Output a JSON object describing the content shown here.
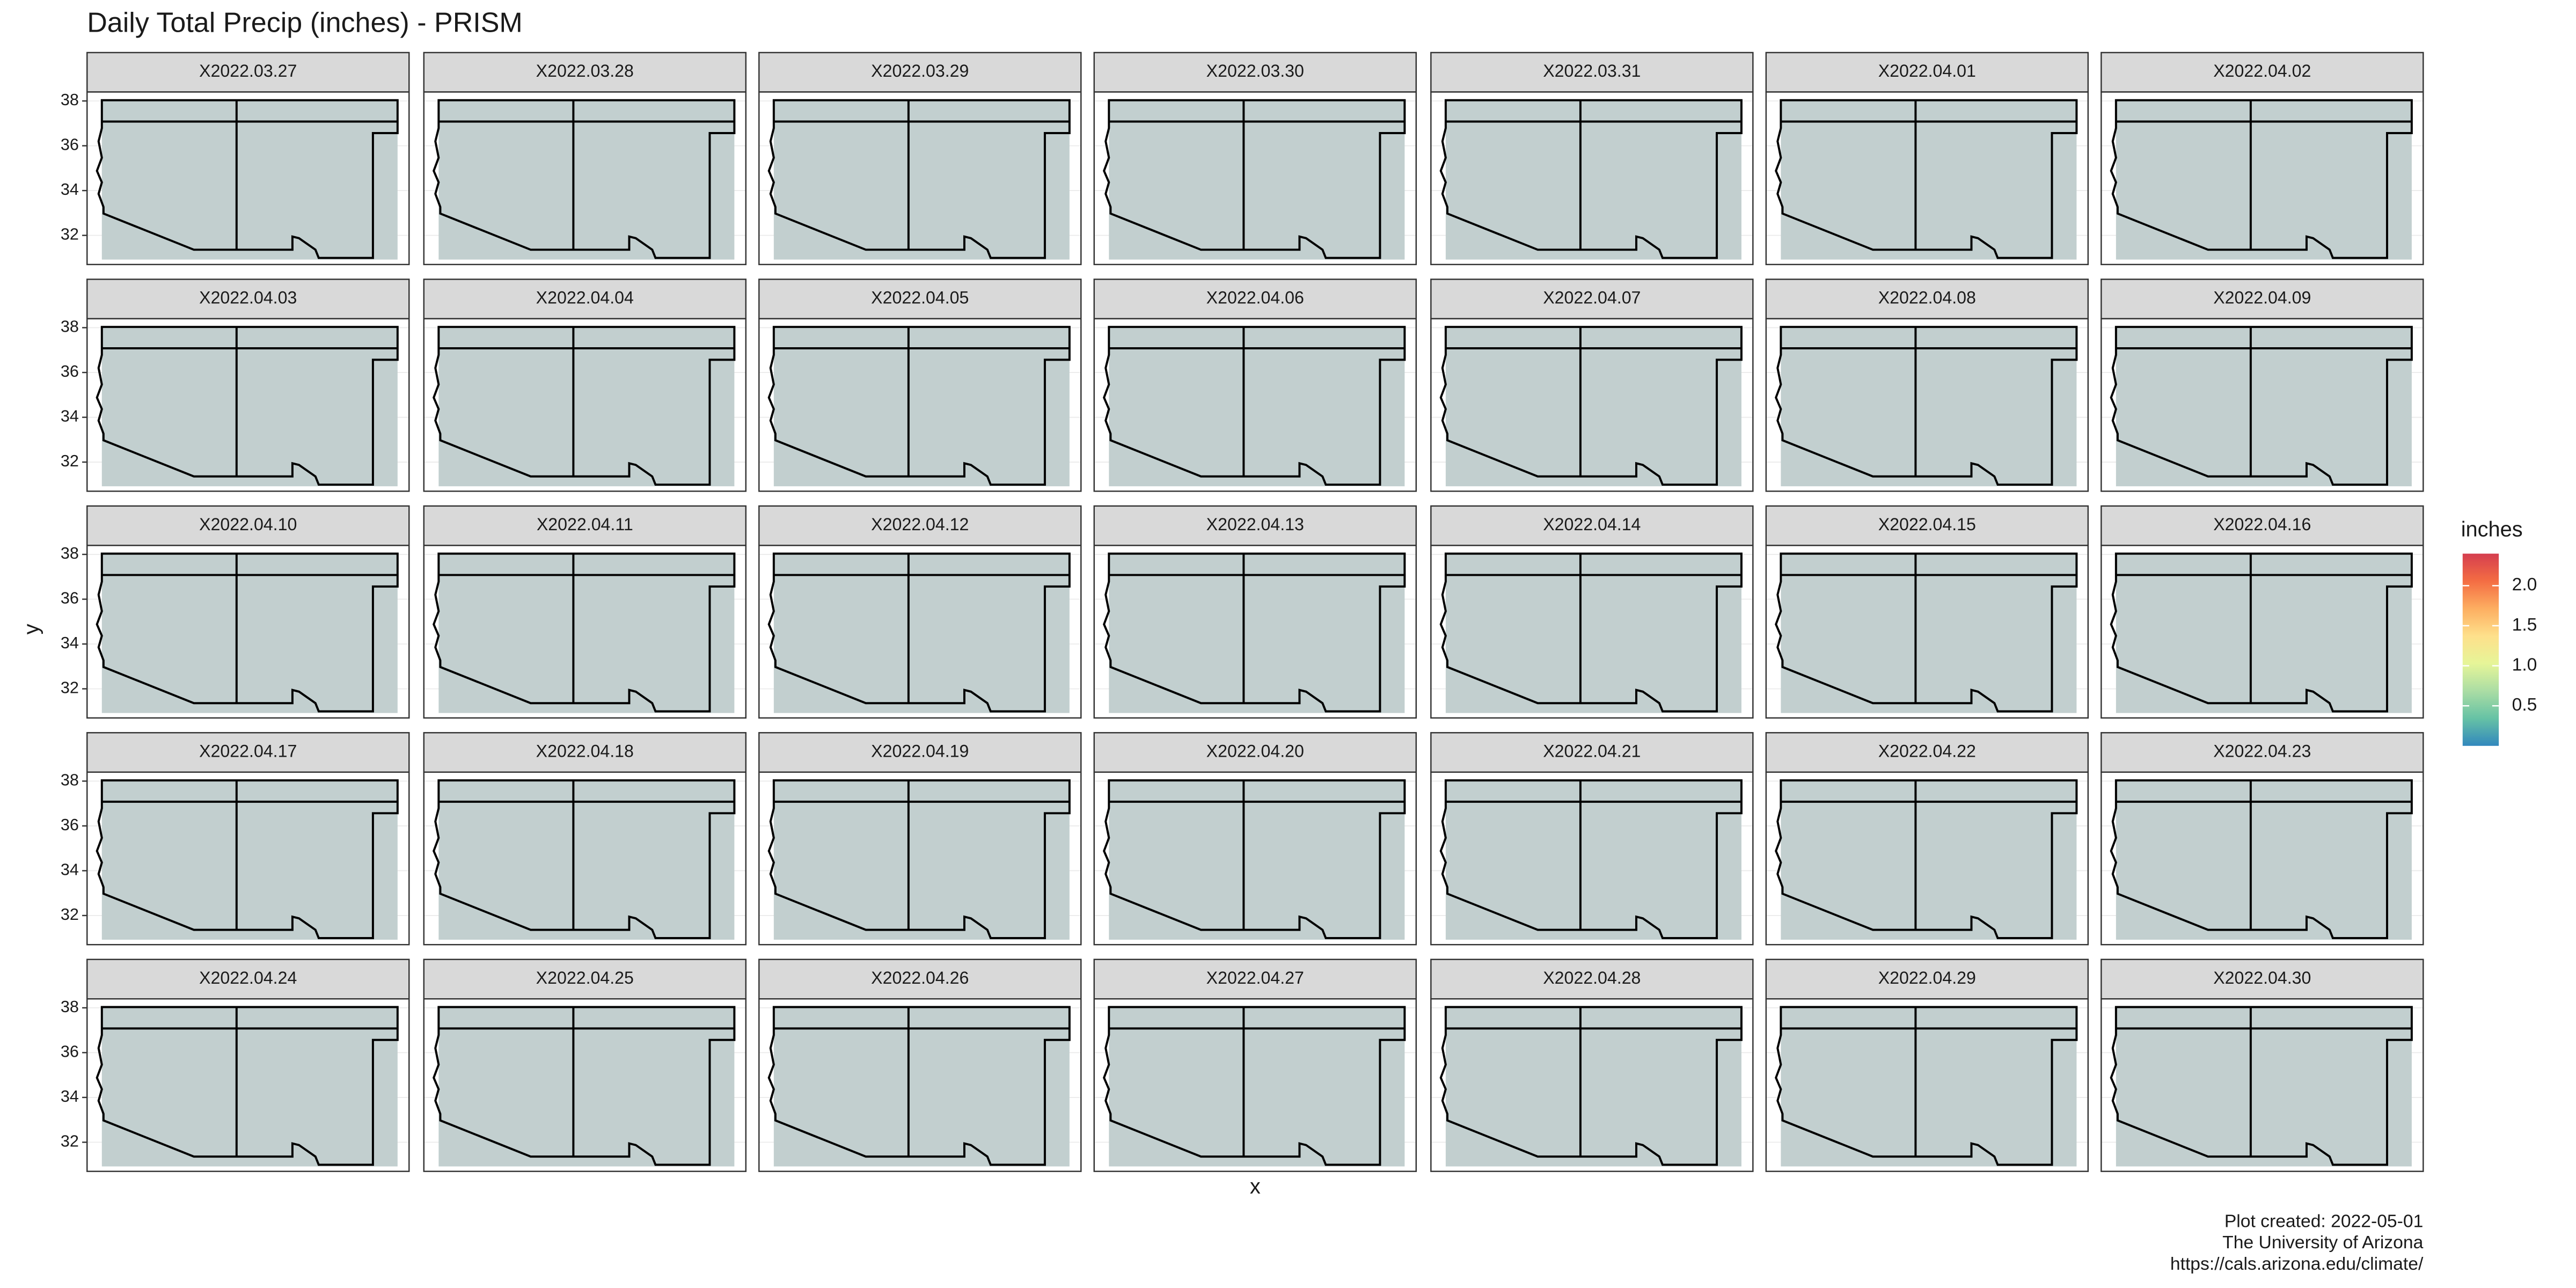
{
  "chart_data": {
    "type": "map",
    "title": "Daily Total Precip (inches) - PRISM",
    "x_label": "x",
    "y_label": "y",
    "facets": [
      "X2022.03.27",
      "X2022.03.28",
      "X2022.03.29",
      "X2022.03.30",
      "X2022.03.31",
      "X2022.04.01",
      "X2022.04.02",
      "X2022.04.03",
      "X2022.04.04",
      "X2022.04.05",
      "X2022.04.06",
      "X2022.04.07",
      "X2022.04.08",
      "X2022.04.09",
      "X2022.04.10",
      "X2022.04.11",
      "X2022.04.12",
      "X2022.04.13",
      "X2022.04.14",
      "X2022.04.15",
      "X2022.04.16",
      "X2022.04.17",
      "X2022.04.18",
      "X2022.04.19",
      "X2022.04.20",
      "X2022.04.21",
      "X2022.04.22",
      "X2022.04.23",
      "X2022.04.24",
      "X2022.04.25",
      "X2022.04.26",
      "X2022.04.27",
      "X2022.04.28",
      "X2022.04.29",
      "X2022.04.30"
    ],
    "ylim": [
      30.7,
      38.4
    ],
    "yticks": [
      32,
      34,
      36,
      38
    ],
    "grid": true,
    "legend": {
      "title": "inches",
      "lim": [
        0,
        2.4
      ],
      "ticks": [
        0.5,
        {
          "value": 1,
          "label": "1.0"
        },
        1.5,
        {
          "value": 2,
          "label": "2.0"
        }
      ],
      "colors": [
        "#3288bd",
        "#66c2a5",
        "#abdda4",
        "#e6f598",
        "#fee08b",
        "#fdae61",
        "#f46d43",
        "#d53e4f"
      ]
    },
    "caption": [
      "Plot created: 2022-05-01",
      "The University of Arizona",
      "https://cals.arizona.edu/climate/"
    ]
  }
}
